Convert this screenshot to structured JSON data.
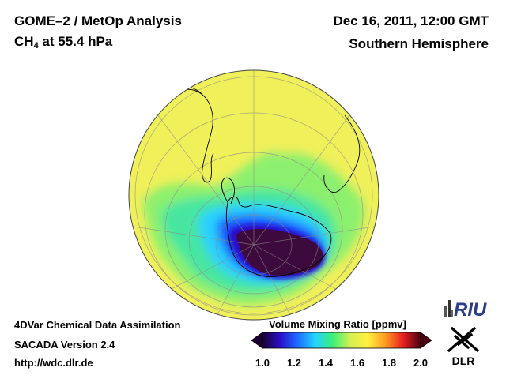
{
  "header": {
    "title": "GOME–2 / MetOp Analysis",
    "species": "CH",
    "species_subscript": "4",
    "pressure_level": "at 55.4 hPa",
    "datetime": "Dec 16, 2011, 12:00 GMT",
    "hemisphere": "Southern Hemisphere"
  },
  "footer": {
    "line1": "4DVar Chemical Data Assimilation",
    "line2": "SACADA Version 2.4",
    "line3": "http://wdc.dlr.de"
  },
  "colorbar": {
    "title": "Volume Mixing Ratio [ppmv]",
    "min": 1.0,
    "max": 2.0,
    "ticks": [
      "1.0",
      "1.2",
      "1.4",
      "1.6",
      "1.8",
      "2.0"
    ],
    "colors": [
      "#1a0030",
      "#2a10c8",
      "#1e6cff",
      "#22d4ff",
      "#3cf078",
      "#d4f050",
      "#fff040",
      "#ff9a20",
      "#e82020",
      "#4a0010"
    ],
    "under_color": "#1a0030",
    "over_color": "#4a0010"
  },
  "map": {
    "projection": "orthographic",
    "pole": "south",
    "background_color": "#f0f05a",
    "field_colors": {
      "high": "#f0f05a",
      "mid": "#8cf06e",
      "low": "#46e6a0",
      "lower": "#2ad0ff",
      "lowest": "#1e56ff",
      "vortex_edge": "#2a10c8",
      "vortex_core": "#3c0a3c"
    }
  },
  "logos": {
    "riu": "RIU",
    "dlr": "DLR"
  }
}
